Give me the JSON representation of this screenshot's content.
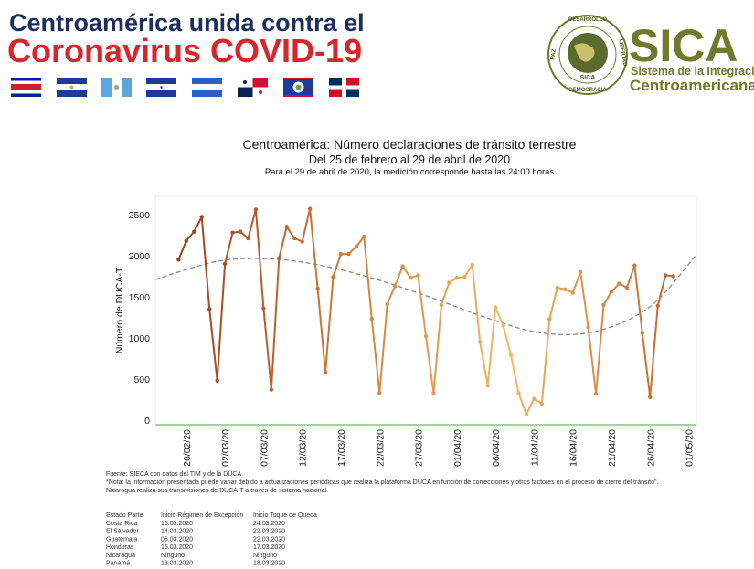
{
  "header": {
    "line1": "Centroamérica unida contra el",
    "line2": "Coronavirus COVID-19"
  },
  "logo": {
    "ring": [
      "DESARROLLO",
      "LIBERTAD",
      "DEMOCRACIA",
      "PAZ"
    ],
    "emblem": "SICA",
    "name": "SICA",
    "line1": "Sistema de la Integración",
    "line2": "Centroamericana"
  },
  "chart_data": {
    "type": "line",
    "title": "Centroamérica: Número declaraciones de tránsito terrestre",
    "subtitle": "Del 25 de febrero al 29 de abril de 2020",
    "note": "Para el 29 de abril de 2020, la medición corresponde hasta las 24:00 horas",
    "y_label": "Número de  DUCA-T",
    "x": [
      "25/02/20",
      "26/02/20",
      "27/02/20",
      "28/02/20",
      "29/02/20",
      "01/03/20",
      "02/03/20",
      "03/03/20",
      "04/03/20",
      "05/03/20",
      "06/03/20",
      "07/03/20",
      "08/03/20",
      "09/03/20",
      "10/03/20",
      "11/03/20",
      "12/03/20",
      "13/03/20",
      "14/03/20",
      "15/03/20",
      "16/03/20",
      "17/03/20",
      "18/03/20",
      "19/03/20",
      "20/03/20",
      "21/03/20",
      "22/03/20",
      "23/03/20",
      "24/03/20",
      "25/03/20",
      "26/03/20",
      "27/03/20",
      "28/03/20",
      "29/03/20",
      "30/03/20",
      "31/03/20",
      "01/04/20",
      "02/04/20",
      "03/04/20",
      "04/04/20",
      "05/04/20",
      "06/04/20",
      "07/04/20",
      "08/04/20",
      "09/04/20",
      "10/04/20",
      "11/04/20",
      "12/04/20",
      "13/04/20",
      "14/04/20",
      "15/04/20",
      "16/04/20",
      "17/04/20",
      "18/04/20",
      "19/04/20",
      "20/04/20",
      "21/04/20",
      "22/04/20",
      "23/04/20",
      "24/04/20",
      "25/04/20",
      "26/04/20",
      "27/04/20",
      "28/04/20",
      "29/04/20"
    ],
    "series": [
      {
        "colors": [
          "#9e3d1b",
          "#d07a3a",
          "#f3b866",
          "#c3652e"
        ],
        "values": [
          1950,
          2180,
          2290,
          2470,
          1350,
          480,
          1900,
          2280,
          2290,
          2210,
          2560,
          1360,
          370,
          1970,
          2350,
          2210,
          2170,
          2570,
          1600,
          580,
          1740,
          2020,
          2020,
          2110,
          2230,
          1230,
          330,
          1410,
          1630,
          1870,
          1730,
          1760,
          1020,
          330,
          1400,
          1670,
          1730,
          1740,
          1890,
          950,
          420,
          1370,
          1150,
          790,
          330,
          70,
          260,
          200,
          1230,
          1610,
          1590,
          1550,
          1800,
          1130,
          320,
          1400,
          1560,
          1660,
          1610,
          1880,
          1060,
          280,
          1390,
          1760,
          1750
        ]
      }
    ],
    "trend": {
      "color": "#8a8a8a",
      "x": [
        "22/02/20",
        "01/03/20",
        "08/03/20",
        "15/03/20",
        "22/03/20",
        "29/03/20",
        "05/04/20",
        "12/04/20",
        "19/04/20",
        "26/04/20",
        "02/05/20"
      ],
      "values": [
        1710,
        1930,
        1960,
        1870,
        1700,
        1480,
        1240,
        1060,
        1080,
        1380,
        2010
      ]
    },
    "xlim": [
      "22/02/20",
      "02/05/20"
    ],
    "xticks": [
      "26/02/20",
      "02/03/20",
      "07/03/20",
      "12/03/20",
      "17/03/20",
      "22/03/20",
      "27/03/20",
      "01/04/20",
      "06/04/20",
      "11/04/20",
      "16/04/20",
      "21/04/20",
      "26/04/20",
      "01/05/20"
    ],
    "ylim": [
      -55,
      2720
    ],
    "yticks": [
      0,
      500,
      1000,
      1500,
      2000,
      2500
    ],
    "axis_color": "#7ccf6a"
  },
  "footer": {
    "source": "Fuente: SIECA con datos del TIM y de la DUCA",
    "note": "*Nota: la información presentada puede variar debido a actualizaciones periódicas que realiza la plataforma DUCA en función de correcciones y otros factores en el proceso de cierre del tránsito\".",
    "nicaragua": "Nicaragua realiza sus transmisiones de DUCA-T a través de sistema nacional."
  },
  "table": {
    "header": [
      "Estado Parte",
      "Inicio Régimen de Excepción",
      "Inicio Toque de Queda"
    ],
    "rows": [
      [
        "Costa Rica",
        "16.03.2020",
        "24.03.2020"
      ],
      [
        "El Salvador",
        "14.03.2020",
        "22.03.2020"
      ],
      [
        "Guatemala",
        "06.03.2020",
        "22.03.2020"
      ],
      [
        "Honduras",
        "15.03.2020",
        "17.03.2020"
      ],
      [
        "Nicaragua",
        "Ninguno",
        "Ninguno"
      ],
      [
        "Panamá",
        "13.03.2020",
        "18.03.2020"
      ]
    ]
  }
}
